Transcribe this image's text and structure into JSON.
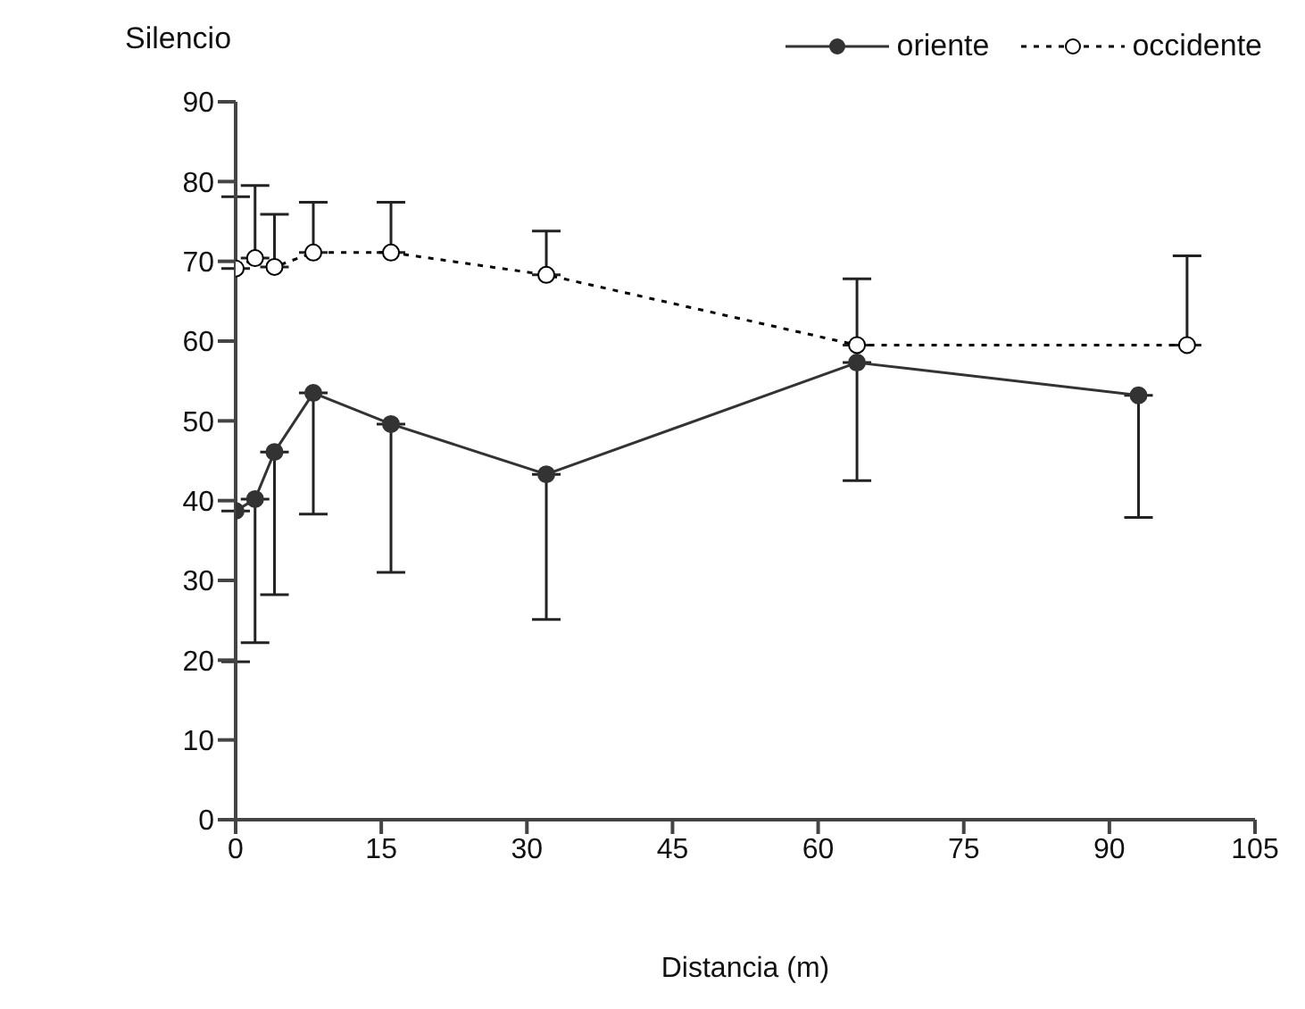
{
  "chart_data": {
    "type": "line",
    "ylabel": "Silencio",
    "xlabel": "Distancia (m)",
    "xlim": [
      0,
      105
    ],
    "xticks": [
      0,
      15,
      30,
      45,
      60,
      75,
      90,
      105
    ],
    "ylim": [
      0,
      90
    ],
    "yticks": [
      0,
      10,
      20,
      30,
      40,
      50,
      60,
      70,
      80,
      90
    ],
    "grid": false,
    "legend": "top right",
    "marker": "circle",
    "series": [
      {
        "name": "oriente",
        "color": "#333333",
        "line_style": "solid",
        "x": [
          0,
          2,
          4,
          8,
          16,
          32,
          64,
          93
        ],
        "values": [
          38.7,
          40.2,
          46.1,
          53.5,
          49.6,
          43.3,
          57.3,
          53.2
        ],
        "errors": [
          [
            19.8,
            38.7
          ],
          [
            22.2,
            40.2
          ],
          [
            28.2,
            46.1
          ],
          [
            38.3,
            53.5
          ],
          [
            31,
            49.6
          ],
          [
            25.1,
            43.3
          ],
          [
            42.5,
            57.3
          ],
          [
            37.9,
            53.2
          ]
        ]
      },
      {
        "name": "occidente",
        "color": "#000000",
        "line_style": "dotted",
        "x": [
          0,
          2,
          4,
          8,
          16,
          32,
          64,
          98
        ],
        "values": [
          69.1,
          70.4,
          69.3,
          71.1,
          71.1,
          68.3,
          59.5,
          59.5
        ],
        "errors": [
          [
            69.1,
            78.1
          ],
          [
            70.4,
            79.5
          ],
          [
            69.3,
            75.9
          ],
          [
            71.1,
            77.4
          ],
          [
            71.1,
            77.4
          ],
          [
            68.3,
            73.8
          ],
          [
            59.5,
            67.8
          ],
          [
            59.5,
            70.7
          ]
        ]
      }
    ]
  }
}
